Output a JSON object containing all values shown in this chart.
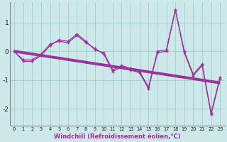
{
  "x_data": [
    0,
    1,
    2,
    3,
    4,
    5,
    6,
    7,
    8,
    9,
    10,
    11,
    12,
    13,
    14,
    15,
    16,
    17,
    18,
    19,
    20,
    21,
    22,
    23
  ],
  "y_line1": [
    0.0,
    -0.3,
    -0.3,
    -0.1,
    0.25,
    0.35,
    0.3,
    0.55,
    0.3,
    0.1,
    -0.1,
    -0.7,
    -0.55,
    -0.65,
    -0.75,
    -1.3,
    -0.05,
    0.0,
    1.45,
    -0.05,
    -0.85,
    -0.5,
    -2.2,
    -0.95
  ],
  "y_line2": [
    0.0,
    -0.35,
    -0.35,
    -0.15,
    0.2,
    0.4,
    0.35,
    0.6,
    0.35,
    0.05,
    -0.05,
    -0.65,
    -0.5,
    -0.6,
    -0.7,
    -1.25,
    0.0,
    0.05,
    1.45,
    0.0,
    -0.8,
    -0.45,
    -2.15,
    -0.9
  ],
  "trend_x": [
    0,
    23
  ],
  "trend_y": [
    0.0,
    -1.1
  ],
  "line_color": "#993399",
  "bg_color": "#cce8e8",
  "grid_color": "#aad0d0",
  "xlabel": "Windchill (Refroidissement éolien,°C)",
  "xlim": [
    -0.5,
    23.5
  ],
  "ylim": [
    -2.6,
    1.7
  ],
  "yticks": [
    -2,
    -1,
    0,
    1
  ],
  "xticks": [
    0,
    1,
    2,
    3,
    4,
    5,
    6,
    7,
    8,
    9,
    10,
    11,
    12,
    13,
    14,
    15,
    16,
    17,
    18,
    19,
    20,
    21,
    22,
    23
  ]
}
